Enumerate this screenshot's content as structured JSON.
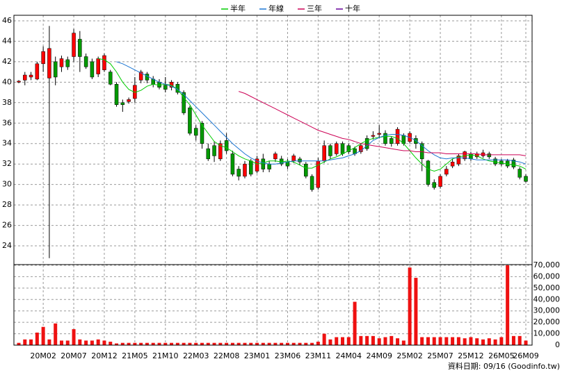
{
  "chart_data": [
    {
      "type": "candlestick",
      "open": [
        40,
        40.2,
        40.5,
        40.3,
        41.8,
        40.4,
        42,
        41.5,
        42.2,
        42.5,
        44.2,
        42.5,
        42,
        40.8,
        41.2,
        41,
        39.8,
        38,
        38.1,
        38.4,
        40.2,
        40.8,
        40.3,
        40,
        39.7,
        39.5,
        39.8,
        39,
        37.5,
        35.5,
        36,
        33.5,
        33.8,
        32.5,
        34.3,
        33,
        31.5,
        30.8,
        32.3,
        31.3,
        32.5,
        32,
        32.5,
        32.5,
        32.2,
        32.3,
        32.5,
        32,
        30.8,
        29.7,
        32.3,
        33.8,
        33,
        34,
        33.8,
        33.5,
        33.2,
        34.5,
        34.7,
        34.9,
        35,
        34.5,
        34,
        34.8,
        34.2,
        34.5,
        34,
        32.3,
        30.2,
        29.8,
        31,
        31.8,
        32,
        32.5,
        33,
        32.7,
        32.8,
        33,
        32.5,
        32.3,
        32.3,
        32.4,
        31.5,
        30.8
      ],
      "high": [
        40.2,
        41,
        41,
        42,
        43.5,
        45.5,
        42.5,
        42.6,
        42.5,
        45.2,
        45,
        42.8,
        42.3,
        42.5,
        42.8,
        41.2,
        40,
        38.3,
        38.5,
        40.5,
        41.2,
        41,
        40.6,
        40.3,
        40.5,
        40.2,
        40,
        39.2,
        37.7,
        35.8,
        36.2,
        34,
        34.2,
        34.3,
        35,
        33.3,
        31.8,
        32.3,
        32.5,
        32.8,
        33,
        32.3,
        33.2,
        32.8,
        32.5,
        33,
        32.7,
        32.2,
        31,
        32.6,
        34.3,
        34,
        34.2,
        34.2,
        34,
        33.7,
        34,
        34.8,
        35.2,
        35.8,
        35.3,
        34.7,
        35.6,
        35,
        35.2,
        34.8,
        34.2,
        32.4,
        30.5,
        31,
        31.8,
        32.5,
        33,
        33.3,
        33.2,
        33.2,
        33.4,
        33.2,
        32.7,
        32.5,
        32.5,
        32.6,
        31.7,
        31
      ],
      "low": [
        39.9,
        39.7,
        40.2,
        40.2,
        41,
        22.8,
        39.7,
        41,
        41.2,
        42,
        41,
        41.3,
        40.3,
        40.5,
        41,
        39.7,
        37.6,
        37.1,
        37.9,
        38,
        39.9,
        39.9,
        39.5,
        39.3,
        39,
        39.2,
        38.8,
        36.8,
        34.8,
        34.3,
        33.5,
        32.3,
        32.2,
        32.3,
        33,
        30.8,
        30.4,
        30.6,
        30.8,
        31.1,
        31.2,
        31.2,
        32.2,
        31.8,
        31.5,
        32.1,
        31.9,
        30.6,
        29.3,
        29.5,
        32.1,
        32.5,
        32.8,
        32.8,
        33,
        32.8,
        33,
        33.3,
        34.4,
        34.5,
        33.8,
        33.7,
        33.8,
        33.8,
        34,
        33.5,
        31.3,
        29.8,
        29.5,
        29.6,
        30.8,
        31.6,
        31.8,
        32.3,
        32.3,
        32.5,
        32.6,
        32.5,
        31.8,
        31.8,
        31.6,
        31.5,
        30.5,
        30.2
      ],
      "close": [
        40.1,
        40.7,
        40.7,
        41.8,
        43,
        43.3,
        40.5,
        42.3,
        41.5,
        44.8,
        42.5,
        41.5,
        40.5,
        42.3,
        42.6,
        39.8,
        37.8,
        37.8,
        38.3,
        39.7,
        41,
        40.2,
        39.8,
        39.5,
        39.3,
        40,
        39,
        37,
        35,
        34.8,
        34,
        32.5,
        32.8,
        34,
        33.3,
        31,
        30.8,
        32,
        31,
        32.5,
        31.5,
        31.5,
        33,
        32,
        31.8,
        32.8,
        32.2,
        30.8,
        29.5,
        32.3,
        33.8,
        32.8,
        34,
        33,
        33.2,
        33,
        33.8,
        33.5,
        34.8,
        35,
        34,
        34,
        35.4,
        34,
        35,
        34,
        32.5,
        30,
        29.7,
        30.8,
        31.5,
        32.2,
        32.8,
        33.2,
        32.5,
        33,
        33.1,
        32.7,
        32,
        32,
        31.8,
        31.7,
        30.7,
        30.3
      ],
      "up_color": "#ff0000",
      "down_color": "#009900",
      "ylim": [
        22.17,
        46.54
      ],
      "yticks": [
        24,
        26,
        28,
        30,
        32,
        34,
        36,
        38,
        40,
        42,
        44,
        46
      ],
      "grid": true,
      "legend": "top",
      "series": [
        {
          "name": "半年",
          "color": "#00cc00",
          "values": [
            null,
            null,
            null,
            null,
            null,
            null,
            null,
            null,
            null,
            null,
            null,
            null,
            null,
            42.3,
            42.2,
            41.8,
            41.0,
            40.0,
            39.3,
            39.0,
            39.2,
            39.6,
            39.8,
            39.7,
            39.8,
            39.7,
            39.3,
            38.5,
            37.8,
            36.8,
            35.8,
            35.0,
            34.2,
            33.8,
            33.6,
            33.2,
            32.8,
            32.5,
            32.3,
            32.0,
            32.1,
            32.3,
            32.3,
            32.2,
            32.3,
            32.2,
            31.9,
            31.6,
            31.6,
            31.9,
            32.2,
            32.5,
            32.7,
            33.0,
            33.3,
            33.6,
            34.0,
            34.3,
            34.5,
            34.6,
            34.7,
            34.7,
            34.5,
            34.0,
            33.3,
            32.6,
            32.0,
            31.5,
            31.3,
            31.5,
            32.0,
            32.5,
            32.7,
            32.8,
            32.9,
            32.8,
            32.5,
            32.3,
            32.2,
            32.1,
            32.0,
            31.9,
            31.8,
            31.5
          ]
        },
        {
          "name": "年線",
          "color": "#1a75d2",
          "values": [
            null,
            null,
            null,
            null,
            null,
            null,
            null,
            null,
            null,
            null,
            null,
            null,
            null,
            null,
            null,
            null,
            42.0,
            41.8,
            41.5,
            41.2,
            40.9,
            40.6,
            40.3,
            40.0,
            39.8,
            39.6,
            39.3,
            38.8,
            38.2,
            37.6,
            37.0,
            36.4,
            35.8,
            35.2,
            34.6,
            34.0,
            33.5,
            33.0,
            32.6,
            32.3,
            32.1,
            32.0,
            32.0,
            32.1,
            32.2,
            32.3,
            32.3,
            32.3,
            32.3,
            32.3,
            32.3,
            32.4,
            32.5,
            32.6,
            32.8,
            33.0,
            33.3,
            33.8,
            34.3,
            34.6,
            34.8,
            34.9,
            34.9,
            34.8,
            34.6,
            34.3,
            33.8,
            33.3,
            32.9,
            32.6,
            32.5,
            32.6,
            32.6,
            32.6,
            32.5,
            32.4,
            32.4,
            32.4,
            32.4,
            32.4,
            32.4,
            32.3,
            32.2,
            32.0
          ]
        },
        {
          "name": "三年",
          "color": "#cc0055",
          "values": [
            null,
            null,
            null,
            null,
            null,
            null,
            null,
            null,
            null,
            null,
            null,
            null,
            null,
            null,
            null,
            null,
            null,
            null,
            null,
            null,
            null,
            null,
            null,
            null,
            null,
            null,
            null,
            null,
            null,
            null,
            null,
            null,
            null,
            null,
            null,
            null,
            39.1,
            38.9,
            38.6,
            38.3,
            38.0,
            37.7,
            37.4,
            37.1,
            36.8,
            36.5,
            36.2,
            35.9,
            35.6,
            35.3,
            35.1,
            34.9,
            34.7,
            34.5,
            34.4,
            34.2,
            34.0,
            33.9,
            33.8,
            33.7,
            33.6,
            33.5,
            33.4,
            33.3,
            33.3,
            33.2,
            33.2,
            33.1,
            33.1,
            33.1,
            33.0,
            33.0,
            33.0,
            33.0,
            33.0,
            33.0,
            32.9,
            32.9,
            32.9,
            32.9,
            32.9,
            32.9,
            32.9,
            32.8
          ]
        },
        {
          "name": "十年",
          "color": "#660099",
          "values": [
            null,
            null,
            null,
            null,
            null,
            null,
            null,
            null,
            null,
            null,
            null,
            null,
            null,
            null,
            null,
            null,
            null,
            null,
            null,
            null,
            null,
            null,
            null,
            null,
            null,
            null,
            null,
            null,
            null,
            null,
            null,
            null,
            null,
            null,
            null,
            null,
            null,
            null,
            null,
            null,
            null,
            null,
            null,
            null,
            null,
            null,
            null,
            null,
            null,
            null,
            null,
            null,
            null,
            null,
            null,
            null,
            null,
            null,
            null,
            null,
            null,
            null,
            null,
            null,
            null,
            null,
            null,
            null,
            null,
            null,
            null,
            null,
            null,
            null,
            null,
            null,
            null,
            null,
            null,
            null,
            null,
            null,
            null,
            null
          ]
        }
      ]
    },
    {
      "type": "bar",
      "categories": [
        null,
        null,
        null,
        null,
        "20M02",
        null,
        null,
        null,
        null,
        "20M07",
        null,
        null,
        null,
        null,
        "20M12",
        null,
        null,
        null,
        null,
        "21M05",
        null,
        null,
        null,
        null,
        "21M10",
        null,
        null,
        null,
        null,
        "22M03",
        null,
        null,
        null,
        null,
        "22M08",
        null,
        null,
        null,
        null,
        "23M01",
        null,
        null,
        null,
        null,
        "23M06",
        null,
        null,
        null,
        null,
        "23M11",
        null,
        null,
        null,
        null,
        "24M04",
        null,
        null,
        null,
        null,
        "24M09",
        null,
        null,
        null,
        null,
        "25M02",
        null,
        null,
        null,
        null,
        "25M07",
        null,
        null,
        null,
        null,
        "25M12",
        null,
        null,
        null,
        null,
        "26M05",
        null,
        null,
        null,
        "26M09"
      ],
      "values": [
        2000,
        5000,
        5000,
        11000,
        16000,
        5000,
        19000,
        4000,
        4000,
        14000,
        5000,
        4000,
        4000,
        5000,
        4000,
        3000,
        1500,
        2000,
        2000,
        2000,
        2000,
        2000,
        2000,
        2000,
        2000,
        2000,
        2000,
        2000,
        2000,
        2000,
        2000,
        2000,
        2000,
        2000,
        2000,
        2000,
        2000,
        2000,
        2000,
        2000,
        2000,
        2000,
        2000,
        2000,
        2000,
        2000,
        2000,
        2000,
        2000,
        3000,
        10000,
        5000,
        7000,
        7000,
        7000,
        38000,
        8000,
        8000,
        8000,
        6000,
        7000,
        8000,
        6000,
        4000,
        68000,
        59000,
        7000,
        7000,
        7000,
        7000,
        7000,
        7000,
        7000,
        6000,
        7000,
        6000,
        5000,
        6000,
        5000,
        7000,
        70000,
        8000,
        8000,
        4000
      ],
      "color": "#ee1111",
      "ylim": [
        0,
        70600
      ],
      "yticks": [
        0,
        {
          "value": 10000,
          "label": "10,000"
        },
        {
          "value": 20000,
          "label": "20,000"
        },
        {
          "value": 30000,
          "label": "30,000"
        },
        {
          "value": 40000,
          "label": "40,000"
        },
        {
          "value": 50000,
          "label": "50,000"
        },
        {
          "value": 60000,
          "label": "60,000"
        },
        {
          "value": 70000,
          "label": "70,000"
        }
      ],
      "grid": true,
      "footnote": "資料日期: 09/16 (Goodinfo.tw)"
    }
  ]
}
